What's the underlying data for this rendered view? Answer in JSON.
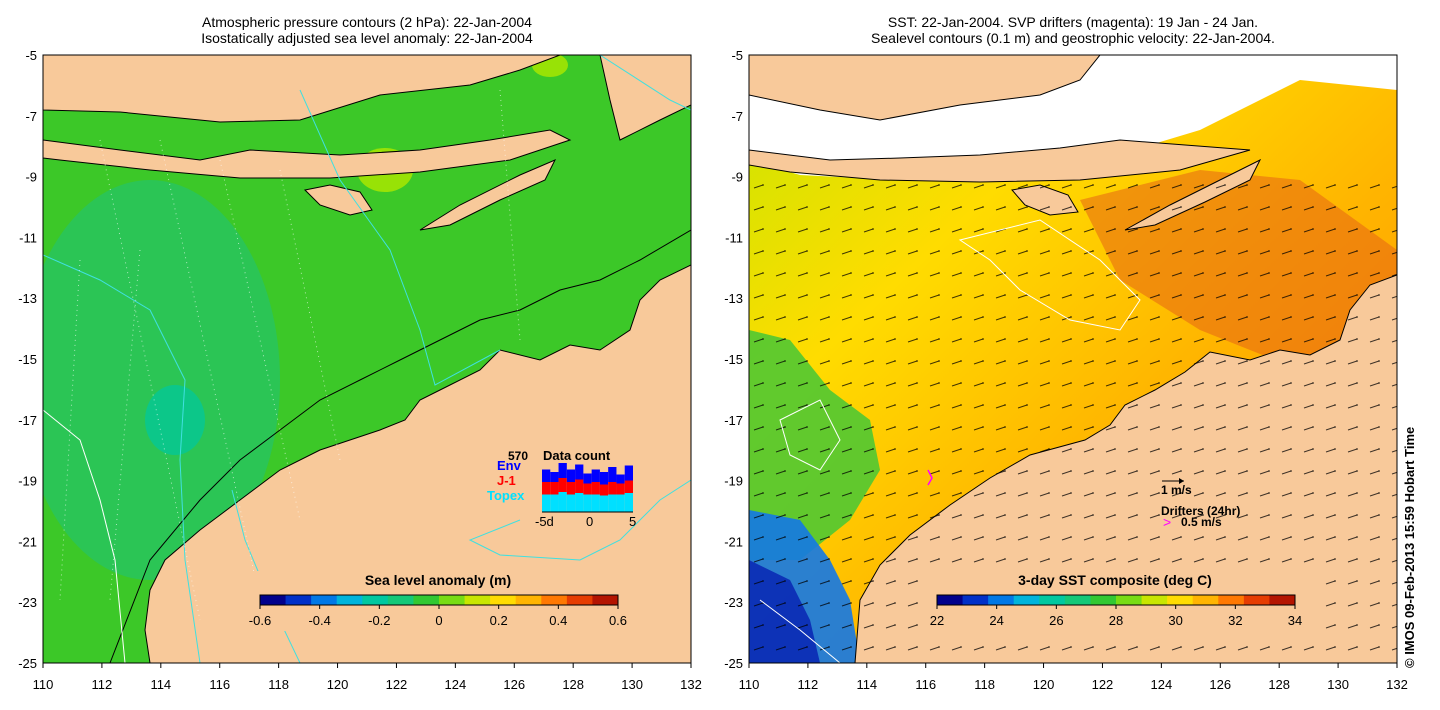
{
  "left_panel": {
    "title_line1": "Atmospheric pressure contours (2 hPa): 22-Jan-2004",
    "title_line2": "Isostatically adjusted sea level anomaly: 22-Jan-2004",
    "colorbar": {
      "label": "Sea level anomaly (m)",
      "ticks": [
        "-0.6",
        "-0.4",
        "-0.2",
        "0",
        "0.2",
        "0.4",
        "0.6"
      ],
      "colors": [
        "#00008c",
        "#0030c8",
        "#0078e6",
        "#00b4dc",
        "#00c8a0",
        "#14c878",
        "#32c832",
        "#78dc14",
        "#c8e600",
        "#ffdc00",
        "#ffb400",
        "#ff7800",
        "#e63c00",
        "#b41400"
      ]
    },
    "data_count": {
      "title": "Data count",
      "max_value": "570",
      "legend": [
        {
          "label": "Env",
          "color": "#0000ff"
        },
        {
          "label": "J-1",
          "color": "#ff0000"
        },
        {
          "label": "Topex",
          "color": "#00e0ff"
        }
      ],
      "xticks": [
        "-5d",
        "0",
        "5"
      ],
      "bars": [
        {
          "topex": 0.35,
          "j1": 0.25,
          "env": 0.25
        },
        {
          "topex": 0.35,
          "j1": 0.25,
          "env": 0.2
        },
        {
          "topex": 0.4,
          "j1": 0.28,
          "env": 0.3
        },
        {
          "topex": 0.35,
          "j1": 0.25,
          "env": 0.25
        },
        {
          "topex": 0.38,
          "j1": 0.27,
          "env": 0.3
        },
        {
          "topex": 0.35,
          "j1": 0.22,
          "env": 0.2
        },
        {
          "topex": 0.35,
          "j1": 0.25,
          "env": 0.25
        },
        {
          "topex": 0.33,
          "j1": 0.22,
          "env": 0.25
        },
        {
          "topex": 0.35,
          "j1": 0.25,
          "env": 0.3
        },
        {
          "topex": 0.35,
          "j1": 0.22,
          "env": 0.18
        },
        {
          "topex": 0.38,
          "j1": 0.25,
          "env": 0.3
        }
      ]
    }
  },
  "right_panel": {
    "title_line1": "SST: 22-Jan-2004. SVP drifters (magenta): 19 Jan - 24 Jan.",
    "title_line2": "Sealevel contours (0.1 m) and geostrophic velocity: 22-Jan-2004.",
    "colorbar": {
      "label": "3-day SST composite (deg C)",
      "ticks": [
        "22",
        "24",
        "26",
        "28",
        "30",
        "32",
        "34"
      ],
      "colors": [
        "#00008c",
        "#0030c8",
        "#0078e6",
        "#00b4dc",
        "#00c8a0",
        "#14c878",
        "#32c832",
        "#78dc14",
        "#c8e600",
        "#ffdc00",
        "#ffb400",
        "#ff7800",
        "#e63c00",
        "#b41400"
      ]
    },
    "velocity_scale_label": "1 m/s",
    "drifters_label": "Drifters (24hr)",
    "drifter_scale_label": "0.5 m/s"
  },
  "axes": {
    "lon_ticks": [
      "110",
      "112",
      "114",
      "116",
      "118",
      "120",
      "122",
      "124",
      "126",
      "128",
      "130",
      "132"
    ],
    "lat_ticks": [
      "-5",
      "-7",
      "-9",
      "-11",
      "-13",
      "-15",
      "-17",
      "-19",
      "-21",
      "-23",
      "-25"
    ]
  },
  "credit": "© IMOS 09-Feb-2013 15:59 Hobart Time",
  "colors": {
    "land": "#f8c99a",
    "ocean_left": "#3cc828",
    "ocean_right": "#ffb400"
  }
}
